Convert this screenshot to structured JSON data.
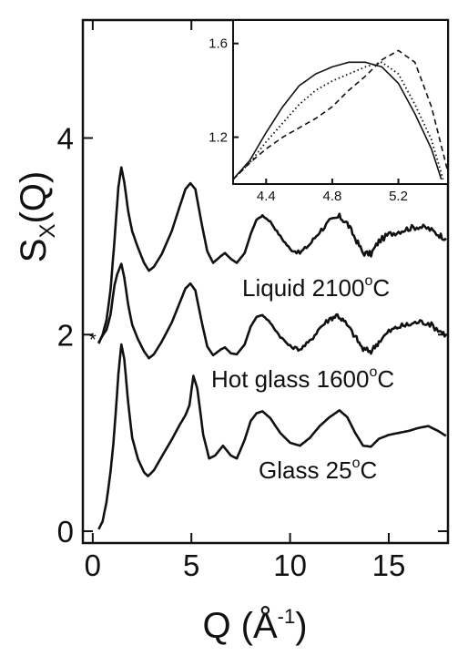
{
  "chart_data": [
    {
      "type": "line",
      "xlabel": "Q (Å",
      "xlabel_sup": "-1",
      "xlabel_close": ")",
      "ylabel": "S",
      "ylabel_sub": "X",
      "ylabel_rest": "(Q)",
      "xlim": [
        -0.5,
        18
      ],
      "ylim": [
        -0.12,
        5.2
      ],
      "x_ticks": [
        0,
        5,
        10,
        15
      ],
      "y_ticks": [
        0,
        2,
        4
      ],
      "tick_labels_x": [
        "0",
        "5",
        "10",
        "15"
      ],
      "tick_labels_y": [
        "0",
        "2",
        "4"
      ],
      "grid": false,
      "legend": "none",
      "marker": "*",
      "marker_point": [
        0,
        1.97
      ],
      "series": [
        {
          "annotation": "Liquid 2100",
          "sup": "o",
          "unit": "C",
          "noisy": true,
          "points": [
            [
              0.3,
              1.91
            ],
            [
              0.5,
              2.0
            ],
            [
              0.7,
              2.15
            ],
            [
              0.9,
              2.45
            ],
            [
              1.1,
              2.95
            ],
            [
              1.3,
              3.5
            ],
            [
              1.45,
              3.7
            ],
            [
              1.6,
              3.55
            ],
            [
              1.8,
              3.25
            ],
            [
              2.0,
              3.05
            ],
            [
              2.3,
              2.88
            ],
            [
              2.6,
              2.73
            ],
            [
              2.85,
              2.65
            ],
            [
              3.1,
              2.69
            ],
            [
              3.5,
              2.82
            ],
            [
              4.0,
              3.05
            ],
            [
              4.4,
              3.3
            ],
            [
              4.7,
              3.48
            ],
            [
              4.95,
              3.54
            ],
            [
              5.2,
              3.48
            ],
            [
              5.5,
              3.15
            ],
            [
              5.8,
              2.85
            ],
            [
              6.1,
              2.73
            ],
            [
              6.5,
              2.8
            ],
            [
              6.7,
              2.83
            ],
            [
              7.0,
              2.77
            ],
            [
              7.3,
              2.73
            ],
            [
              7.7,
              2.83
            ],
            [
              8.0,
              3.02
            ],
            [
              8.3,
              3.17
            ],
            [
              8.6,
              3.21
            ],
            [
              9.0,
              3.15
            ],
            [
              9.5,
              3.0
            ],
            [
              10.0,
              2.87
            ],
            [
              10.5,
              2.83
            ],
            [
              11.0,
              2.92
            ],
            [
              11.5,
              3.05
            ],
            [
              12.0,
              3.15
            ],
            [
              12.5,
              3.2
            ],
            [
              12.9,
              3.13
            ],
            [
              13.3,
              2.98
            ],
            [
              13.7,
              2.83
            ],
            [
              14.1,
              2.82
            ],
            [
              14.5,
              2.95
            ],
            [
              15.0,
              3.02
            ],
            [
              15.5,
              3.05
            ],
            [
              16.0,
              3.08
            ],
            [
              16.5,
              3.1
            ],
            [
              17.0,
              3.08
            ],
            [
              17.5,
              3.02
            ],
            [
              17.9,
              2.98
            ]
          ]
        },
        {
          "annotation": "Hot glass 1600",
          "sup": "o",
          "unit": "C",
          "noisy": true,
          "points": [
            [
              0.3,
              1.92
            ],
            [
              0.5,
              1.99
            ],
            [
              0.7,
              2.05
            ],
            [
              0.9,
              2.2
            ],
            [
              1.1,
              2.5
            ],
            [
              1.25,
              2.62
            ],
            [
              1.45,
              2.72
            ],
            [
              1.6,
              2.58
            ],
            [
              1.8,
              2.3
            ],
            [
              2.0,
              2.1
            ],
            [
              2.3,
              1.95
            ],
            [
              2.6,
              1.83
            ],
            [
              2.85,
              1.76
            ],
            [
              3.1,
              1.8
            ],
            [
              3.5,
              1.93
            ],
            [
              4.0,
              2.12
            ],
            [
              4.4,
              2.32
            ],
            [
              4.7,
              2.47
            ],
            [
              4.95,
              2.52
            ],
            [
              5.2,
              2.45
            ],
            [
              5.5,
              2.15
            ],
            [
              5.8,
              1.88
            ],
            [
              6.1,
              1.79
            ],
            [
              6.5,
              1.85
            ],
            [
              6.7,
              1.87
            ],
            [
              7.0,
              1.81
            ],
            [
              7.3,
              1.8
            ],
            [
              7.7,
              1.9
            ],
            [
              8.0,
              2.08
            ],
            [
              8.3,
              2.18
            ],
            [
              8.6,
              2.2
            ],
            [
              9.0,
              2.12
            ],
            [
              9.5,
              1.98
            ],
            [
              10.0,
              1.88
            ],
            [
              10.5,
              1.85
            ],
            [
              11.0,
              1.93
            ],
            [
              11.5,
              2.07
            ],
            [
              12.0,
              2.16
            ],
            [
              12.4,
              2.2
            ],
            [
              12.8,
              2.12
            ],
            [
              13.3,
              1.98
            ],
            [
              13.7,
              1.85
            ],
            [
              14.1,
              1.83
            ],
            [
              14.5,
              1.93
            ],
            [
              15.0,
              2.03
            ],
            [
              15.5,
              2.08
            ],
            [
              16.0,
              2.1
            ],
            [
              16.5,
              2.13
            ],
            [
              17.0,
              2.12
            ],
            [
              17.5,
              2.05
            ],
            [
              17.9,
              2.0
            ]
          ]
        },
        {
          "annotation": "Glass 25",
          "sup": "o",
          "unit": "C",
          "noisy": false,
          "points": [
            [
              0.3,
              0.02
            ],
            [
              0.5,
              0.1
            ],
            [
              0.7,
              0.3
            ],
            [
              0.9,
              0.6
            ],
            [
              1.05,
              0.9
            ],
            [
              1.2,
              1.3
            ],
            [
              1.3,
              1.6
            ],
            [
              1.45,
              1.9
            ],
            [
              1.6,
              1.75
            ],
            [
              1.8,
              1.3
            ],
            [
              2.0,
              0.95
            ],
            [
              2.3,
              0.73
            ],
            [
              2.6,
              0.6
            ],
            [
              2.8,
              0.56
            ],
            [
              3.1,
              0.62
            ],
            [
              3.5,
              0.76
            ],
            [
              4.0,
              0.93
            ],
            [
              4.4,
              1.08
            ],
            [
              4.7,
              1.18
            ],
            [
              4.9,
              1.28
            ],
            [
              5.1,
              1.58
            ],
            [
              5.3,
              1.45
            ],
            [
              5.6,
              0.98
            ],
            [
              5.9,
              0.74
            ],
            [
              6.2,
              0.77
            ],
            [
              6.6,
              0.87
            ],
            [
              7.0,
              0.77
            ],
            [
              7.3,
              0.74
            ],
            [
              7.7,
              0.93
            ],
            [
              8.0,
              1.12
            ],
            [
              8.3,
              1.2
            ],
            [
              8.6,
              1.22
            ],
            [
              9.0,
              1.15
            ],
            [
              9.5,
              1.0
            ],
            [
              10.0,
              0.9
            ],
            [
              10.5,
              0.87
            ],
            [
              11.0,
              0.95
            ],
            [
              11.5,
              1.07
            ],
            [
              12.0,
              1.16
            ],
            [
              12.5,
              1.23
            ],
            [
              12.9,
              1.16
            ],
            [
              13.3,
              1.0
            ],
            [
              13.7,
              0.87
            ],
            [
              14.1,
              0.86
            ],
            [
              14.5,
              0.94
            ],
            [
              15.0,
              0.98
            ],
            [
              15.5,
              1.0
            ],
            [
              16.0,
              1.02
            ],
            [
              16.5,
              1.05
            ],
            [
              17.0,
              1.07
            ],
            [
              17.5,
              1.02
            ],
            [
              17.9,
              0.97
            ]
          ]
        }
      ]
    },
    {
      "type": "line",
      "inset": true,
      "xlim": [
        4.2,
        5.5
      ],
      "ylim": [
        1.0,
        1.7
      ],
      "x_ticks": [
        4.4,
        4.8,
        5.2
      ],
      "y_ticks": [
        1.2,
        1.6
      ],
      "tick_labels_x": [
        "4.4",
        "4.8",
        "5.2"
      ],
      "tick_labels_y": [
        "1.2",
        "1.6"
      ],
      "series": [
        {
          "style": "solid",
          "points": [
            [
              4.2,
              1.02
            ],
            [
              4.3,
              1.1
            ],
            [
              4.4,
              1.22
            ],
            [
              4.5,
              1.33
            ],
            [
              4.6,
              1.42
            ],
            [
              4.7,
              1.47
            ],
            [
              4.8,
              1.5
            ],
            [
              4.9,
              1.52
            ],
            [
              5.0,
              1.52
            ],
            [
              5.1,
              1.5
            ],
            [
              5.2,
              1.43
            ],
            [
              5.3,
              1.3
            ],
            [
              5.4,
              1.15
            ],
            [
              5.46,
              1.02
            ]
          ]
        },
        {
          "style": "dotted",
          "points": [
            [
              4.2,
              1.02
            ],
            [
              4.3,
              1.09
            ],
            [
              4.4,
              1.18
            ],
            [
              4.5,
              1.26
            ],
            [
              4.6,
              1.34
            ],
            [
              4.7,
              1.4
            ],
            [
              4.8,
              1.44
            ],
            [
              4.9,
              1.47
            ],
            [
              5.0,
              1.5
            ],
            [
              5.1,
              1.52
            ],
            [
              5.2,
              1.47
            ],
            [
              5.3,
              1.34
            ],
            [
              5.4,
              1.19
            ],
            [
              5.47,
              1.02
            ]
          ]
        },
        {
          "style": "dashed",
          "points": [
            [
              4.2,
              1.02
            ],
            [
              4.3,
              1.09
            ],
            [
              4.4,
              1.15
            ],
            [
              4.5,
              1.2
            ],
            [
              4.6,
              1.24
            ],
            [
              4.7,
              1.28
            ],
            [
              4.8,
              1.33
            ],
            [
              4.9,
              1.4
            ],
            [
              5.0,
              1.46
            ],
            [
              5.1,
              1.53
            ],
            [
              5.2,
              1.57
            ],
            [
              5.3,
              1.52
            ],
            [
              5.4,
              1.33
            ],
            [
              5.5,
              1.05
            ]
          ]
        }
      ]
    }
  ]
}
